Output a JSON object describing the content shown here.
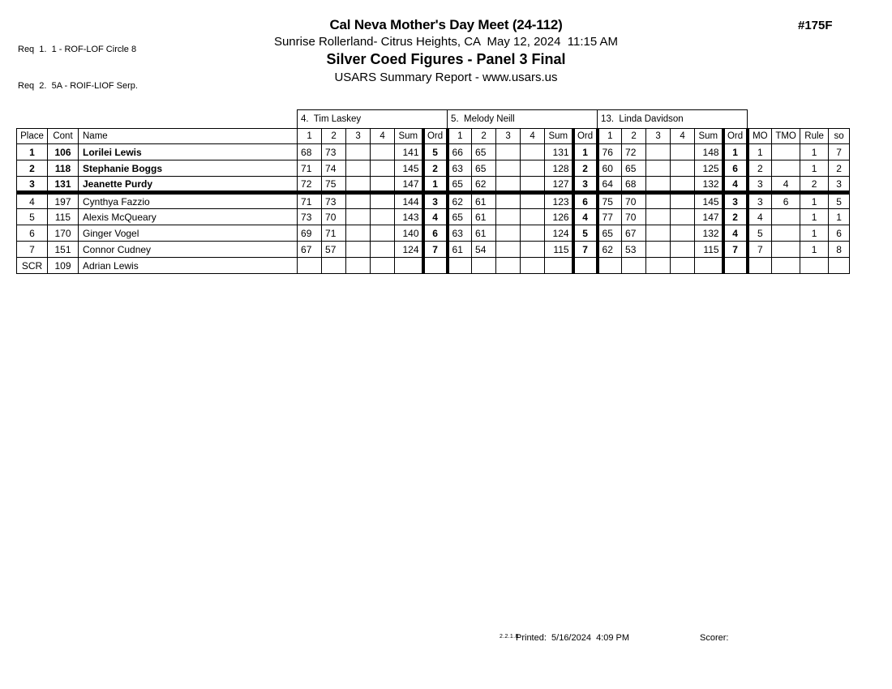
{
  "page": {
    "meet_number": "#175F",
    "requirements": [
      "Req  1.  1 - ROF-LOF Circle 8",
      "Req  2.  5A - ROIF-LIOF Serp."
    ],
    "title": "Cal Neva Mother's Day Meet (24-112)",
    "venue_datetime": "Sunrise Rollerland- Citrus Heights, CA  May 12, 2024  11:15 AM",
    "event_title": "Silver Coed Figures - Panel 3 Final",
    "report_title": "USARS Summary Report - www.usars.us",
    "footer": {
      "version": "2.2.1.8",
      "printed": "Printed:  5/16/2024  4:09 PM",
      "scorer": "Scorer:"
    }
  },
  "table": {
    "judges": [
      "4.  Tim Laskey",
      "5.  Melody Neill",
      "13.  Linda Davidson"
    ],
    "base_headers": [
      "Place",
      "Cont",
      "Name"
    ],
    "judge_headers": [
      "1",
      "2",
      "3",
      "4",
      "Sum",
      "Ord"
    ],
    "tail_headers": [
      "MO",
      "TMO",
      "Rule",
      "so"
    ],
    "rows": [
      {
        "place": "1",
        "cont": "106",
        "name": "Lorilei Lewis",
        "bold": true,
        "separator_after": false,
        "judges": [
          {
            "scores": [
              "68",
              "73",
              "",
              ""
            ],
            "sum": "141",
            "ord": "5"
          },
          {
            "scores": [
              "66",
              "65",
              "",
              ""
            ],
            "sum": "131",
            "ord": "1"
          },
          {
            "scores": [
              "76",
              "72",
              "",
              ""
            ],
            "sum": "148",
            "ord": "1"
          }
        ],
        "mo": "1",
        "tmo": "",
        "rule": "1",
        "so": "7"
      },
      {
        "place": "2",
        "cont": "118",
        "name": "Stephanie Boggs",
        "bold": true,
        "separator_after": false,
        "judges": [
          {
            "scores": [
              "71",
              "74",
              "",
              ""
            ],
            "sum": "145",
            "ord": "2"
          },
          {
            "scores": [
              "63",
              "65",
              "",
              ""
            ],
            "sum": "128",
            "ord": "2"
          },
          {
            "scores": [
              "60",
              "65",
              "",
              ""
            ],
            "sum": "125",
            "ord": "6"
          }
        ],
        "mo": "2",
        "tmo": "",
        "rule": "1",
        "so": "2"
      },
      {
        "place": "3",
        "cont": "131",
        "name": "Jeanette Purdy",
        "bold": true,
        "separator_after": true,
        "judges": [
          {
            "scores": [
              "72",
              "75",
              "",
              ""
            ],
            "sum": "147",
            "ord": "1"
          },
          {
            "scores": [
              "65",
              "62",
              "",
              ""
            ],
            "sum": "127",
            "ord": "3"
          },
          {
            "scores": [
              "64",
              "68",
              "",
              ""
            ],
            "sum": "132",
            "ord": "4"
          }
        ],
        "mo": "3",
        "tmo": "4",
        "rule": "2",
        "so": "3"
      },
      {
        "place": "4",
        "cont": "197",
        "name": "Cynthya Fazzio",
        "bold": false,
        "separator_after": false,
        "judges": [
          {
            "scores": [
              "71",
              "73",
              "",
              ""
            ],
            "sum": "144",
            "ord": "3"
          },
          {
            "scores": [
              "62",
              "61",
              "",
              ""
            ],
            "sum": "123",
            "ord": "6"
          },
          {
            "scores": [
              "75",
              "70",
              "",
              ""
            ],
            "sum": "145",
            "ord": "3"
          }
        ],
        "mo": "3",
        "tmo": "6",
        "rule": "1",
        "so": "5"
      },
      {
        "place": "5",
        "cont": "115",
        "name": "Alexis McQueary",
        "bold": false,
        "separator_after": false,
        "judges": [
          {
            "scores": [
              "73",
              "70",
              "",
              ""
            ],
            "sum": "143",
            "ord": "4"
          },
          {
            "scores": [
              "65",
              "61",
              "",
              ""
            ],
            "sum": "126",
            "ord": "4"
          },
          {
            "scores": [
              "77",
              "70",
              "",
              ""
            ],
            "sum": "147",
            "ord": "2"
          }
        ],
        "mo": "4",
        "tmo": "",
        "rule": "1",
        "so": "1"
      },
      {
        "place": "6",
        "cont": "170",
        "name": "Ginger Vogel",
        "bold": false,
        "separator_after": false,
        "judges": [
          {
            "scores": [
              "69",
              "71",
              "",
              ""
            ],
            "sum": "140",
            "ord": "6"
          },
          {
            "scores": [
              "63",
              "61",
              "",
              ""
            ],
            "sum": "124",
            "ord": "5"
          },
          {
            "scores": [
              "65",
              "67",
              "",
              ""
            ],
            "sum": "132",
            "ord": "4"
          }
        ],
        "mo": "5",
        "tmo": "",
        "rule": "1",
        "so": "6"
      },
      {
        "place": "7",
        "cont": "151",
        "name": "Connor Cudney",
        "bold": false,
        "separator_after": false,
        "judges": [
          {
            "scores": [
              "67",
              "57",
              "",
              ""
            ],
            "sum": "124",
            "ord": "7"
          },
          {
            "scores": [
              "61",
              "54",
              "",
              ""
            ],
            "sum": "115",
            "ord": "7"
          },
          {
            "scores": [
              "62",
              "53",
              "",
              ""
            ],
            "sum": "115",
            "ord": "7"
          }
        ],
        "mo": "7",
        "tmo": "",
        "rule": "1",
        "so": "8"
      },
      {
        "place": "SCR",
        "cont": "109",
        "name": "Adrian Lewis",
        "bold": false,
        "separator_after": false,
        "judges": [
          {
            "scores": [
              "",
              "",
              "",
              ""
            ],
            "sum": "",
            "ord": ""
          },
          {
            "scores": [
              "",
              "",
              "",
              ""
            ],
            "sum": "",
            "ord": ""
          },
          {
            "scores": [
              "",
              "",
              "",
              ""
            ],
            "sum": "",
            "ord": ""
          }
        ],
        "mo": "",
        "tmo": "",
        "rule": "",
        "so": ""
      }
    ]
  }
}
